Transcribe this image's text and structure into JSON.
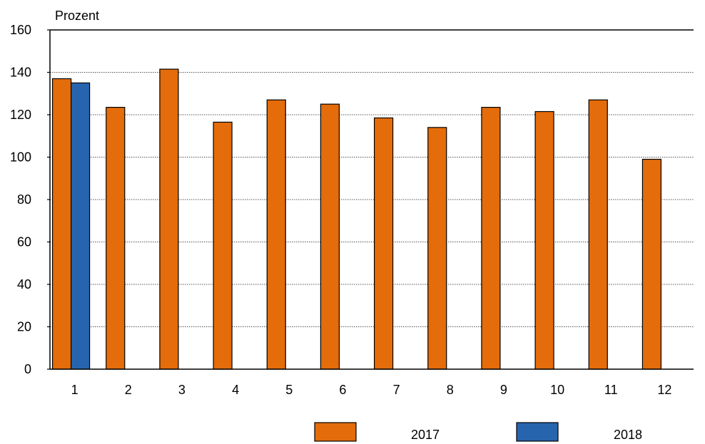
{
  "chart_data": {
    "type": "bar",
    "ylabel": "Prozent",
    "ylim": [
      0,
      160
    ],
    "yticks": [
      0,
      20,
      40,
      60,
      80,
      100,
      120,
      140,
      160
    ],
    "categories": [
      "1",
      "2",
      "3",
      "4",
      "5",
      "6",
      "7",
      "8",
      "9",
      "10",
      "11",
      "12"
    ],
    "series": [
      {
        "name": "2017",
        "color": "#E46C0A",
        "values": [
          137,
          123.5,
          141.5,
          116.5,
          127,
          125,
          118.5,
          114,
          123.5,
          121.5,
          127,
          99
        ]
      },
      {
        "name": "2018",
        "color": "#2764AE",
        "values": [
          135,
          null,
          null,
          null,
          null,
          null,
          null,
          null,
          null,
          null,
          null,
          null
        ]
      }
    ],
    "grid": true,
    "grid_style": "dotted-horizontal",
    "legend_position": "bottom-right"
  }
}
